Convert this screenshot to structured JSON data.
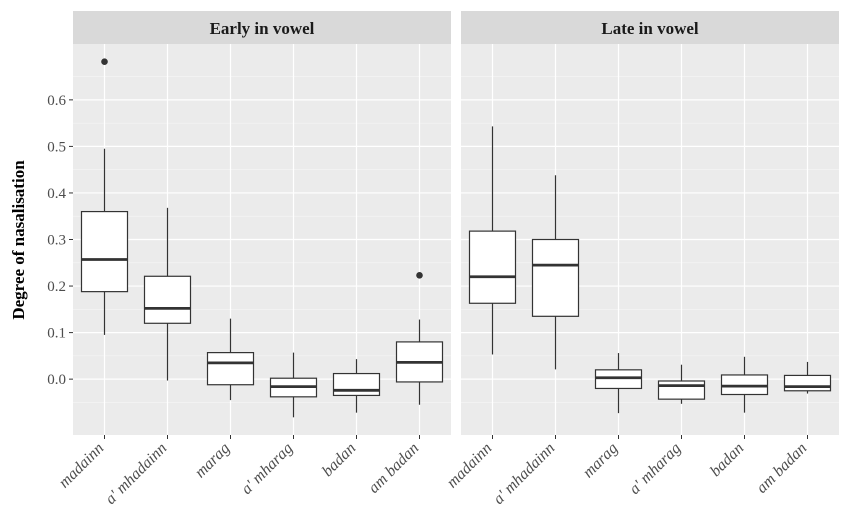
{
  "chart_data": {
    "type": "boxplot",
    "ylabel": "Degree of nasalisation",
    "xlabel": "",
    "y_ticks": [
      "0.0",
      "0.1",
      "0.2",
      "0.3",
      "0.4",
      "0.5",
      "0.6"
    ],
    "ylim": [
      -0.12,
      0.72
    ],
    "grid": true,
    "categories": [
      "madainn",
      "a' mhadainn",
      "marag",
      "a' mharag",
      "badan",
      "am badan"
    ],
    "panels": [
      {
        "title": "Early in vowel",
        "boxes": [
          {
            "category": "madainn",
            "whisker_low": 0.095,
            "q1": 0.188,
            "median": 0.257,
            "q3": 0.36,
            "whisker_high": 0.495,
            "outliers": [
              0.682
            ]
          },
          {
            "category": "a' mhadainn",
            "whisker_low": -0.003,
            "q1": 0.12,
            "median": 0.152,
            "q3": 0.221,
            "whisker_high": 0.368,
            "outliers": []
          },
          {
            "category": "marag",
            "whisker_low": -0.045,
            "q1": -0.012,
            "median": 0.035,
            "q3": 0.057,
            "whisker_high": 0.13,
            "outliers": []
          },
          {
            "category": "a' mharag",
            "whisker_low": -0.082,
            "q1": -0.038,
            "median": -0.016,
            "q3": 0.002,
            "whisker_high": 0.057,
            "outliers": []
          },
          {
            "category": "badan",
            "whisker_low": -0.072,
            "q1": -0.035,
            "median": -0.024,
            "q3": 0.012,
            "whisker_high": 0.043,
            "outliers": []
          },
          {
            "category": "am badan",
            "whisker_low": -0.055,
            "q1": -0.006,
            "median": 0.036,
            "q3": 0.08,
            "whisker_high": 0.128,
            "outliers": [
              0.223
            ]
          }
        ]
      },
      {
        "title": "Late in vowel",
        "boxes": [
          {
            "category": "madainn",
            "whisker_low": 0.053,
            "q1": 0.163,
            "median": 0.22,
            "q3": 0.318,
            "whisker_high": 0.543,
            "outliers": []
          },
          {
            "category": "a' mhadainn",
            "whisker_low": 0.021,
            "q1": 0.135,
            "median": 0.245,
            "q3": 0.3,
            "whisker_high": 0.438,
            "outliers": []
          },
          {
            "category": "marag",
            "whisker_low": -0.073,
            "q1": -0.02,
            "median": 0.003,
            "q3": 0.02,
            "whisker_high": 0.056,
            "outliers": []
          },
          {
            "category": "a' mharag",
            "whisker_low": -0.053,
            "q1": -0.043,
            "median": -0.014,
            "q3": -0.004,
            "whisker_high": 0.031,
            "outliers": []
          },
          {
            "category": "badan",
            "whisker_low": -0.072,
            "q1": -0.033,
            "median": -0.015,
            "q3": 0.009,
            "whisker_high": 0.048,
            "outliers": []
          },
          {
            "category": "am badan",
            "whisker_low": -0.031,
            "q1": -0.025,
            "median": -0.016,
            "q3": 0.008,
            "whisker_high": 0.037,
            "outliers": []
          }
        ]
      }
    ]
  }
}
